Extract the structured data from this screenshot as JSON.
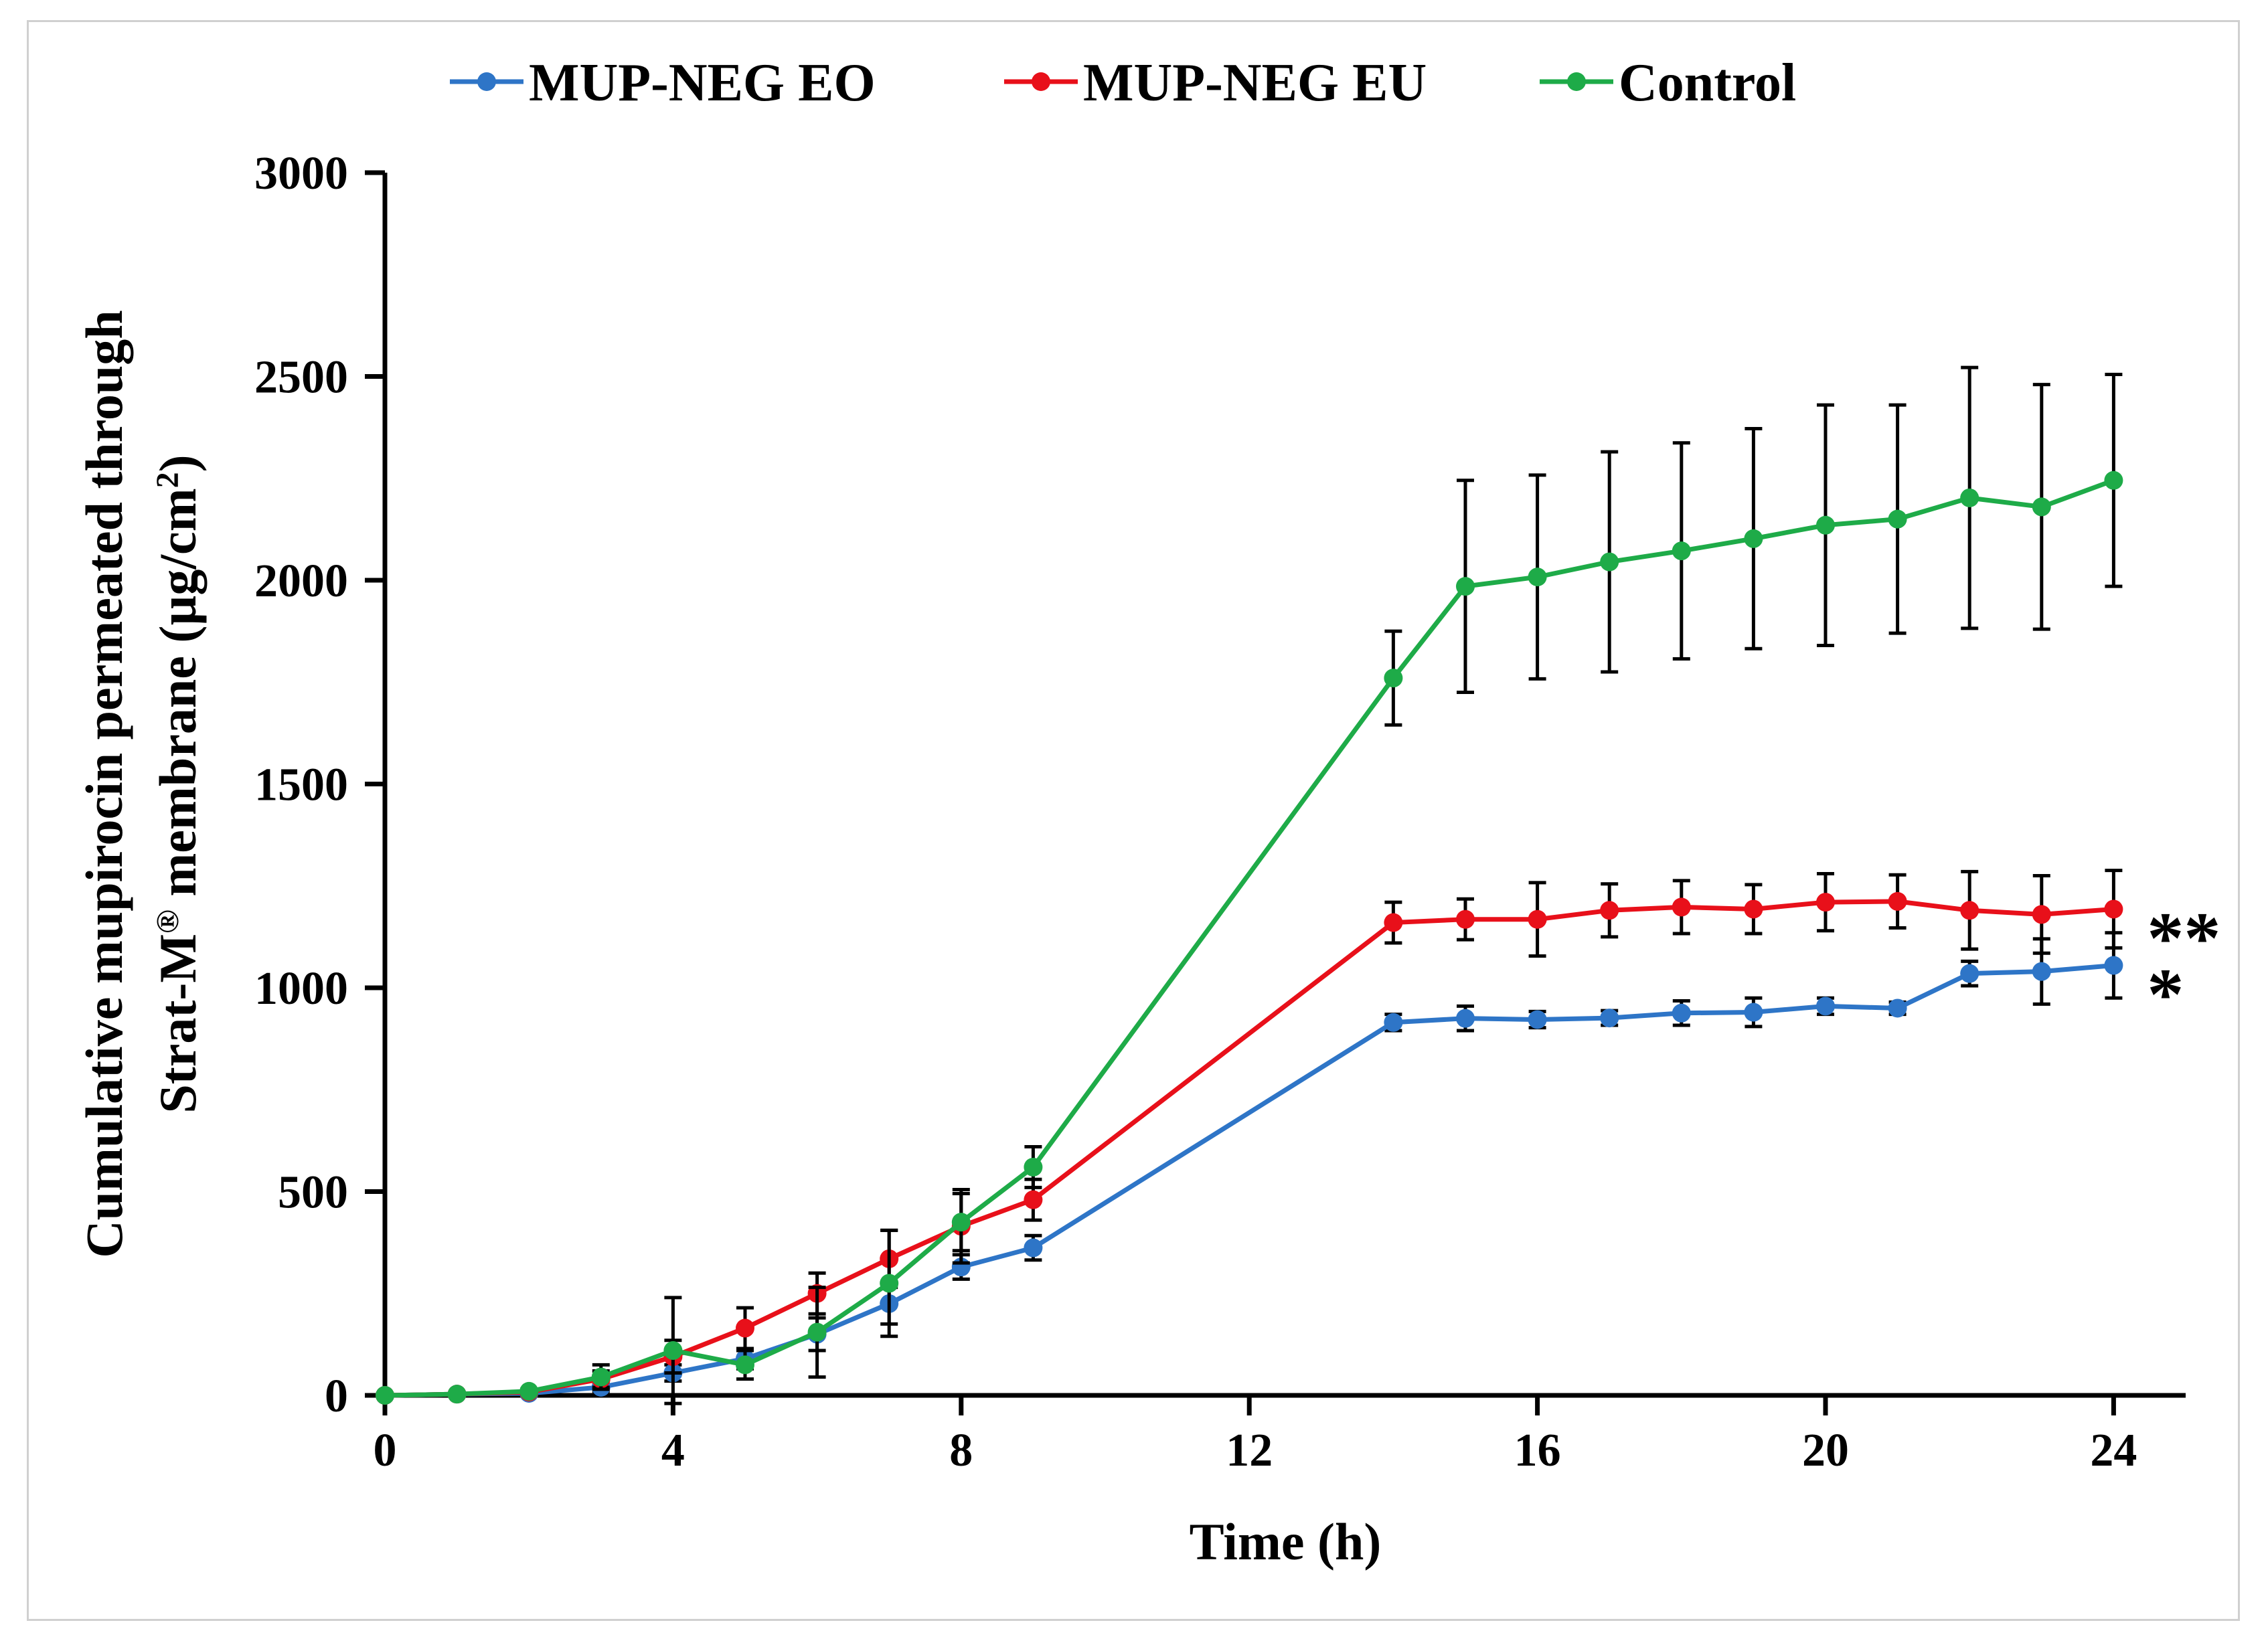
{
  "chart_data": {
    "type": "line",
    "title": "",
    "xlabel": "Time (h)",
    "ylabel_line1": "Cumulative mupirocin permeated through",
    "ylabel_line2_prefix": "Strat-M",
    "ylabel_line2_sup1": "®",
    "ylabel_line2_mid": " membrane (µg/cm",
    "ylabel_line2_sup2": "2",
    "ylabel_line2_suffix": ")",
    "xlim": [
      0,
      25
    ],
    "ylim": [
      0,
      3000
    ],
    "xticks": [
      0,
      4,
      8,
      12,
      16,
      20,
      24
    ],
    "yticks": [
      0,
      500,
      1000,
      1500,
      2000,
      2500,
      3000
    ],
    "x": [
      0,
      1,
      2,
      3,
      4,
      5,
      6,
      7,
      8,
      9,
      14,
      15,
      16,
      17,
      18,
      19,
      20,
      21,
      22,
      23,
      24
    ],
    "legend_position": "top",
    "series": [
      {
        "name": "MUP-NEG EO",
        "color": "#2e75c7",
        "values": [
          0,
          3,
          5,
          20,
          55,
          90,
          150,
          225,
          315,
          362,
          915,
          925,
          922,
          926,
          938,
          940,
          955,
          950,
          1035,
          1040,
          1055
        ],
        "errors": [
          0,
          2,
          3,
          10,
          20,
          25,
          40,
          50,
          30,
          30,
          20,
          30,
          20,
          18,
          30,
          35,
          20,
          15,
          30,
          80,
          80
        ]
      },
      {
        "name": "MUP-NEG EU",
        "color": "#e8101a",
        "values": [
          0,
          3,
          8,
          40,
          95,
          165,
          250,
          335,
          415,
          480,
          1160,
          1168,
          1168,
          1190,
          1198,
          1193,
          1210,
          1212,
          1190,
          1180,
          1193
        ],
        "errors": [
          0,
          2,
          5,
          20,
          40,
          50,
          50,
          70,
          90,
          50,
          50,
          50,
          90,
          65,
          65,
          60,
          70,
          65,
          95,
          95,
          95
        ]
      },
      {
        "name": "Control",
        "color": "#1eab48",
        "values": [
          0,
          3,
          10,
          45,
          110,
          75,
          155,
          275,
          425,
          560,
          1760,
          1985,
          2008,
          2045,
          2072,
          2102,
          2135,
          2150,
          2202,
          2180,
          2245
        ],
        "errors": [
          0,
          2,
          5,
          30,
          130,
          35,
          110,
          130,
          70,
          50,
          115,
          260,
          250,
          270,
          265,
          270,
          295,
          280,
          320,
          300,
          260
        ]
      }
    ],
    "annotations": [
      {
        "text": "**",
        "series": "MUP-NEG EU",
        "x": 24
      },
      {
        "text": "*",
        "series": "MUP-NEG EO",
        "x": 24
      }
    ]
  }
}
